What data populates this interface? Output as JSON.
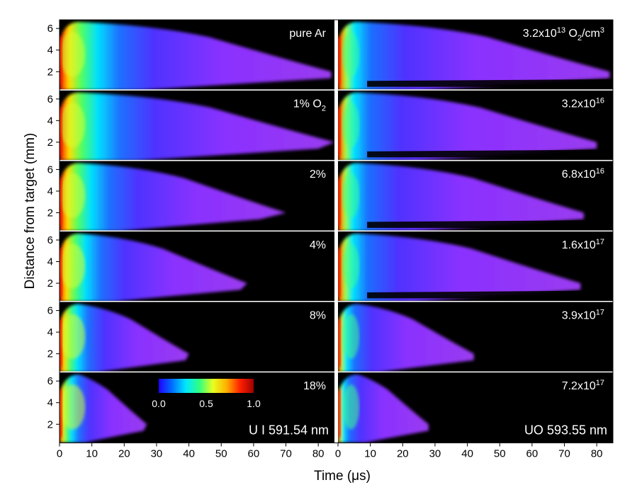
{
  "chart_data": {
    "type": "heatmap",
    "xlabel": "Time (μs)",
    "ylabel": "Distance from target (mm)",
    "xlim": [
      0,
      85
    ],
    "ylim": [
      0.3,
      6.8
    ],
    "x_ticks": [
      "0",
      "10",
      "20",
      "30",
      "40",
      "50",
      "60",
      "70",
      "80"
    ],
    "x_tick_values": [
      0,
      10,
      20,
      30,
      40,
      50,
      60,
      70,
      80
    ],
    "y_ticks": [
      "2",
      "4",
      "6"
    ],
    "y_tick_values": [
      2,
      4,
      6
    ],
    "background_color": "#000000",
    "colorbar": {
      "min": 0.0,
      "max": 1.0,
      "tick_labels": [
        "0.0",
        "0.5",
        "1.0"
      ],
      "tick_values": [
        0.0,
        0.5,
        1.0
      ],
      "colors": [
        "#2000ff",
        "#0070ff",
        "#00e8ff",
        "#30ff80",
        "#e8ff20",
        "#ffb000",
        "#ff2000",
        "#a00000"
      ]
    },
    "columns": [
      {
        "species_label": "U I 591.54 nm",
        "panels": [
          {
            "label": "pure Ar",
            "label_parts": [],
            "extent_us": 84,
            "near_extent_us": 84,
            "low_gap": false
          },
          {
            "label": "1% O",
            "label_parts": [
              {
                "text": "1% O"
              },
              {
                "text": "2",
                "sub": true
              }
            ],
            "extent_us": 85,
            "near_extent_us": 80,
            "low_gap": false
          },
          {
            "label": "2%",
            "label_parts": [],
            "extent_us": 70,
            "near_extent_us": 62,
            "low_gap": false
          },
          {
            "label": "4%",
            "label_parts": [],
            "extent_us": 58,
            "near_extent_us": 56,
            "low_gap": false
          },
          {
            "label": "8%",
            "label_parts": [],
            "extent_us": 40,
            "near_extent_us": 39,
            "low_gap": false
          },
          {
            "label": "18%",
            "label_parts": [],
            "extent_us": 27,
            "near_extent_us": 26,
            "low_gap": false
          }
        ]
      },
      {
        "species_label": "UO 593.55 nm",
        "panels": [
          {
            "label": "3.2x10",
            "label_parts": [
              {
                "text": "3.2x10"
              },
              {
                "text": "13",
                "sup": true
              },
              {
                "text": " O"
              },
              {
                "text": "2",
                "sub": true
              },
              {
                "text": "/cm"
              },
              {
                "text": "3",
                "sup": true
              }
            ],
            "extent_us": 84,
            "near_extent_us": 84,
            "low_gap": true
          },
          {
            "label": "3.2x10",
            "label_parts": [
              {
                "text": "3.2x10"
              },
              {
                "text": "16",
                "sup": true
              }
            ],
            "extent_us": 80,
            "near_extent_us": 80,
            "low_gap": true
          },
          {
            "label": "6.8x10",
            "label_parts": [
              {
                "text": "6.8x10"
              },
              {
                "text": "16",
                "sup": true
              }
            ],
            "extent_us": 76,
            "near_extent_us": 76,
            "low_gap": true
          },
          {
            "label": "1.6x10",
            "label_parts": [
              {
                "text": "1.6x10"
              },
              {
                "text": "17",
                "sup": true
              }
            ],
            "extent_us": 75,
            "near_extent_us": 75,
            "low_gap": true
          },
          {
            "label": "3.9x10",
            "label_parts": [
              {
                "text": "3.9x10"
              },
              {
                "text": "17",
                "sup": true
              }
            ],
            "extent_us": 42,
            "near_extent_us": 42,
            "low_gap": false
          },
          {
            "label": "7.2x10",
            "label_parts": [
              {
                "text": "7.2x10"
              },
              {
                "text": "17",
                "sup": true
              }
            ],
            "extent_us": 28,
            "near_extent_us": 28,
            "low_gap": false
          }
        ]
      }
    ]
  }
}
